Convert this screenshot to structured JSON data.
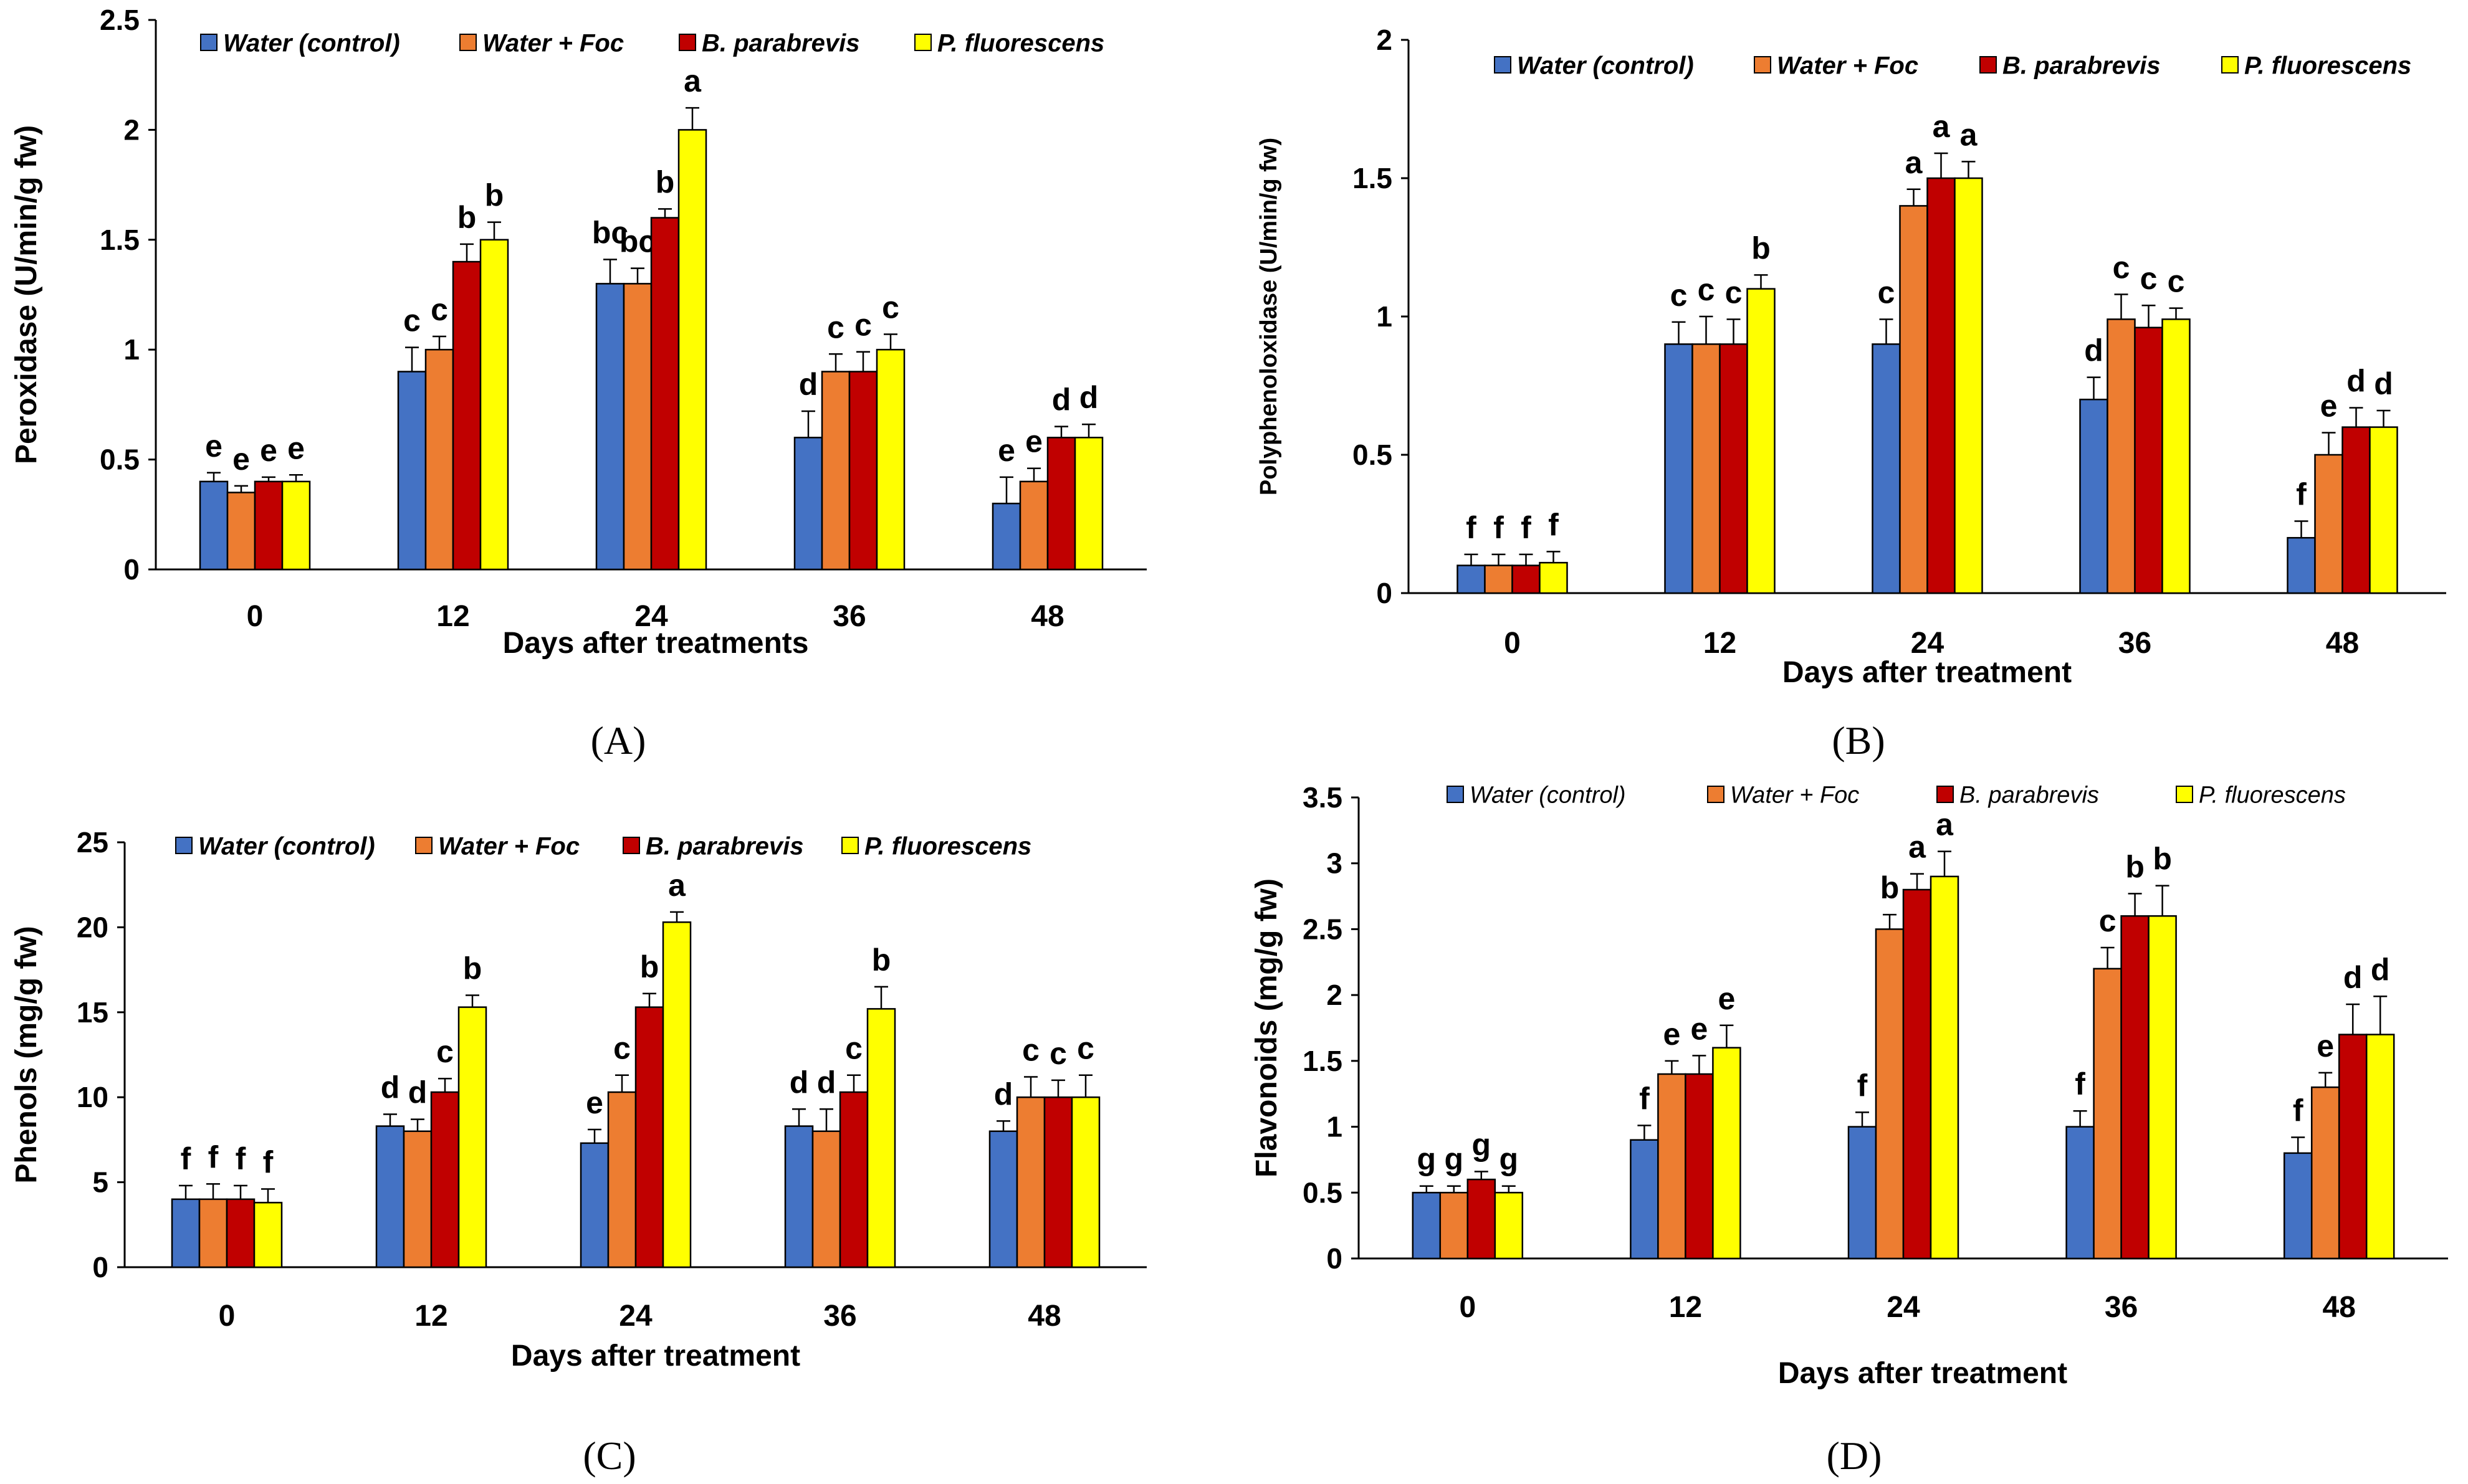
{
  "series_colors": [
    "#4472c4",
    "#ed7d31",
    "#c00000",
    "#ffff00"
  ],
  "chart_data": [
    {
      "type": "bar",
      "panel": "(A)",
      "legend_style": "bold-italic",
      "ylabel": "Peroxidase (U/min/g fw)",
      "xlabel": "Days after treatments",
      "ylim": [
        0,
        2.5
      ],
      "yticks": [
        0,
        0.5,
        1,
        1.5,
        2,
        2.5
      ],
      "ytick_labels": [
        "0",
        "0.5",
        "1",
        "1.5",
        "2",
        "2.5"
      ],
      "categories": [
        "0",
        "12",
        "24",
        "36",
        "48"
      ],
      "series": [
        {
          "name": "Water (control)",
          "values": [
            0.4,
            0.9,
            1.3,
            0.6,
            0.3
          ],
          "errors": [
            0.04,
            0.11,
            0.11,
            0.12,
            0.12
          ],
          "letters": [
            "e",
            "c",
            "bc",
            "d",
            "e"
          ]
        },
        {
          "name": "Water + Foc",
          "values": [
            0.35,
            1.0,
            1.3,
            0.9,
            0.4
          ],
          "errors": [
            0.03,
            0.06,
            0.07,
            0.08,
            0.06
          ],
          "letters": [
            "e",
            "c",
            "bc",
            "c",
            "e"
          ]
        },
        {
          "name": "B. parabrevis",
          "values": [
            0.4,
            1.4,
            1.6,
            0.9,
            0.6
          ],
          "errors": [
            0.02,
            0.08,
            0.04,
            0.09,
            0.05
          ],
          "letters": [
            "e",
            "b",
            "b",
            "c",
            "d"
          ]
        },
        {
          "name": "P. fluorescens",
          "values": [
            0.4,
            1.5,
            2.0,
            1.0,
            0.6
          ],
          "errors": [
            0.03,
            0.08,
            0.1,
            0.07,
            0.06
          ],
          "letters": [
            "e",
            "b",
            "a",
            "c",
            "d"
          ]
        }
      ]
    },
    {
      "type": "bar",
      "panel": "(B)",
      "legend_style": "bold-italic",
      "ylabel": "Polyphenoloxidase (U/min/g fw)",
      "xlabel": "Days after treatment",
      "ylim": [
        0,
        2
      ],
      "yticks": [
        0,
        0.5,
        1,
        1.5,
        2
      ],
      "ytick_labels": [
        "0",
        "0.5",
        "1",
        "1.5",
        "2"
      ],
      "categories": [
        "0",
        "12",
        "24",
        "36",
        "48"
      ],
      "series": [
        {
          "name": "Water (control)",
          "values": [
            0.1,
            0.9,
            0.9,
            0.7,
            0.2
          ],
          "errors": [
            0.04,
            0.08,
            0.09,
            0.08,
            0.06
          ],
          "letters": [
            "f",
            "c",
            "c",
            "d",
            "f"
          ]
        },
        {
          "name": "Water + Foc",
          "values": [
            0.1,
            0.9,
            1.4,
            0.99,
            0.5
          ],
          "errors": [
            0.04,
            0.1,
            0.06,
            0.09,
            0.08
          ],
          "letters": [
            "f",
            "c",
            "a",
            "c",
            "e"
          ]
        },
        {
          "name": "B. parabrevis",
          "values": [
            0.1,
            0.9,
            1.5,
            0.96,
            0.6
          ],
          "errors": [
            0.04,
            0.09,
            0.09,
            0.08,
            0.07
          ],
          "letters": [
            "f",
            "c",
            "a",
            "c",
            "d"
          ]
        },
        {
          "name": "P. fluorescens",
          "values": [
            0.11,
            1.1,
            1.5,
            0.99,
            0.6
          ],
          "errors": [
            0.04,
            0.05,
            0.06,
            0.04,
            0.06
          ],
          "letters": [
            "f",
            "b",
            "a",
            "c",
            "d"
          ]
        }
      ]
    },
    {
      "type": "bar",
      "panel": "(C)",
      "legend_style": "bold-italic",
      "ylabel": "Phenols (mg/g fw)",
      "xlabel": "Days after treatment",
      "ylim": [
        0,
        25
      ],
      "yticks": [
        0,
        5,
        10,
        15,
        20,
        25
      ],
      "ytick_labels": [
        "0",
        "5",
        "10",
        "15",
        "20",
        "25"
      ],
      "categories": [
        "0",
        "12",
        "24",
        "36",
        "48"
      ],
      "series": [
        {
          "name": "Water (control)",
          "values": [
            4.0,
            8.3,
            7.3,
            8.3,
            8.0
          ],
          "errors": [
            0.8,
            0.7,
            0.8,
            1.0,
            0.6
          ],
          "letters": [
            "f",
            "d",
            "e",
            "d",
            "d"
          ]
        },
        {
          "name": "Water + Foc",
          "values": [
            4.0,
            8.0,
            10.3,
            8.0,
            10.0
          ],
          "errors": [
            0.9,
            0.7,
            1.0,
            1.3,
            1.2
          ],
          "letters": [
            "f",
            "d",
            "c",
            "d",
            "c"
          ]
        },
        {
          "name": "B. parabrevis",
          "values": [
            4.0,
            10.3,
            15.3,
            10.3,
            10.0
          ],
          "errors": [
            0.8,
            0.8,
            0.8,
            1.0,
            1.0
          ],
          "letters": [
            "f",
            "c",
            "b",
            "c",
            "c"
          ]
        },
        {
          "name": "P. fluorescens",
          "values": [
            3.8,
            15.3,
            20.3,
            15.2,
            10.0
          ],
          "errors": [
            0.8,
            0.7,
            0.6,
            1.3,
            1.3
          ],
          "letters": [
            "f",
            "b",
            "a",
            "b",
            "c"
          ]
        }
      ]
    },
    {
      "type": "bar",
      "panel": "(D)",
      "legend_style": "italic",
      "ylabel": "Flavonoids (mg/g fw)",
      "xlabel": "Days after treatment",
      "ylim": [
        0,
        3.5
      ],
      "yticks": [
        0,
        0.5,
        1,
        1.5,
        2,
        2.5,
        3,
        3.5
      ],
      "ytick_labels": [
        "0",
        "0.5",
        "1",
        "1.5",
        "2",
        "2.5",
        "3",
        "3.5"
      ],
      "categories": [
        "0",
        "12",
        "24",
        "36",
        "48"
      ],
      "series": [
        {
          "name": "Water (control)",
          "values": [
            0.5,
            0.9,
            1.0,
            1.0,
            0.8
          ],
          "errors": [
            0.05,
            0.11,
            0.11,
            0.12,
            0.12
          ],
          "letters": [
            "g",
            "f",
            "f",
            "f",
            "f"
          ]
        },
        {
          "name": "Water + Foc",
          "values": [
            0.5,
            1.4,
            2.5,
            2.2,
            1.3
          ],
          "errors": [
            0.05,
            0.1,
            0.11,
            0.16,
            0.11
          ],
          "letters": [
            "g",
            "e",
            "b",
            "c",
            "e"
          ]
        },
        {
          "name": "B. parabrevis",
          "values": [
            0.6,
            1.4,
            2.8,
            2.6,
            1.7
          ],
          "errors": [
            0.06,
            0.14,
            0.12,
            0.17,
            0.23
          ],
          "letters": [
            "g",
            "e",
            "a",
            "b",
            "d"
          ]
        },
        {
          "name": "P. fluorescens",
          "values": [
            0.5,
            1.6,
            2.9,
            2.6,
            1.7
          ],
          "errors": [
            0.05,
            0.17,
            0.19,
            0.23,
            0.29
          ],
          "letters": [
            "g",
            "e",
            "a",
            "b",
            "d"
          ]
        }
      ]
    }
  ]
}
